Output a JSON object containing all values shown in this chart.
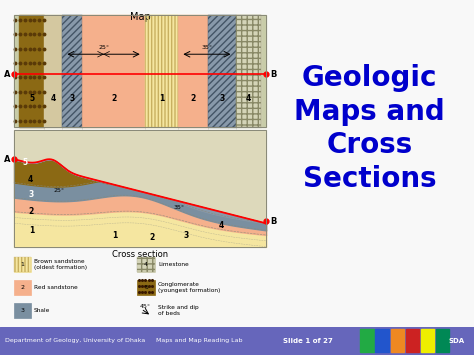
{
  "title_text": "Geologic\nMaps and\nCross\nSections",
  "title_color": "#0000cc",
  "bg_color": "#f8f8f8",
  "footer_bg": "#6666bb",
  "footer_text_left": "Department of Geology, University of Dhaka",
  "footer_text_mid": "Maps and Map Reading Lab",
  "footer_text_right": "Slide 1 of 27",
  "footer_text_far_right": "SDA",
  "footer_color": "#ffffff",
  "map_label": "Map",
  "cross_section_label": "Cross section",
  "band_edges": [
    0.02,
    0.12,
    0.19,
    0.27,
    0.52,
    0.65,
    0.77,
    0.88,
    0.98
  ],
  "band_colors": [
    "#8b6914",
    "#d4c8a0",
    "#8899aa",
    "#f5b08c",
    "#f5e6a0",
    "#f5b08c",
    "#8899aa",
    "#d4d4b8"
  ],
  "band_nums": [
    "5",
    "4",
    "3",
    "2",
    "1",
    "2",
    "3",
    "4"
  ],
  "conglomerate_color": "#8b6914",
  "shale_color": "#7a8fa0",
  "sandstone_brown_color": "#f5e6a0",
  "sandstone_red_color": "#f5b08c",
  "limestone_color": "#d4d4b8",
  "cs_bg": "#e8e4cc",
  "icon_colors": [
    "#22aa44",
    "#2255cc",
    "#ee8822",
    "#cc2222",
    "#eeee00",
    "#008855"
  ]
}
